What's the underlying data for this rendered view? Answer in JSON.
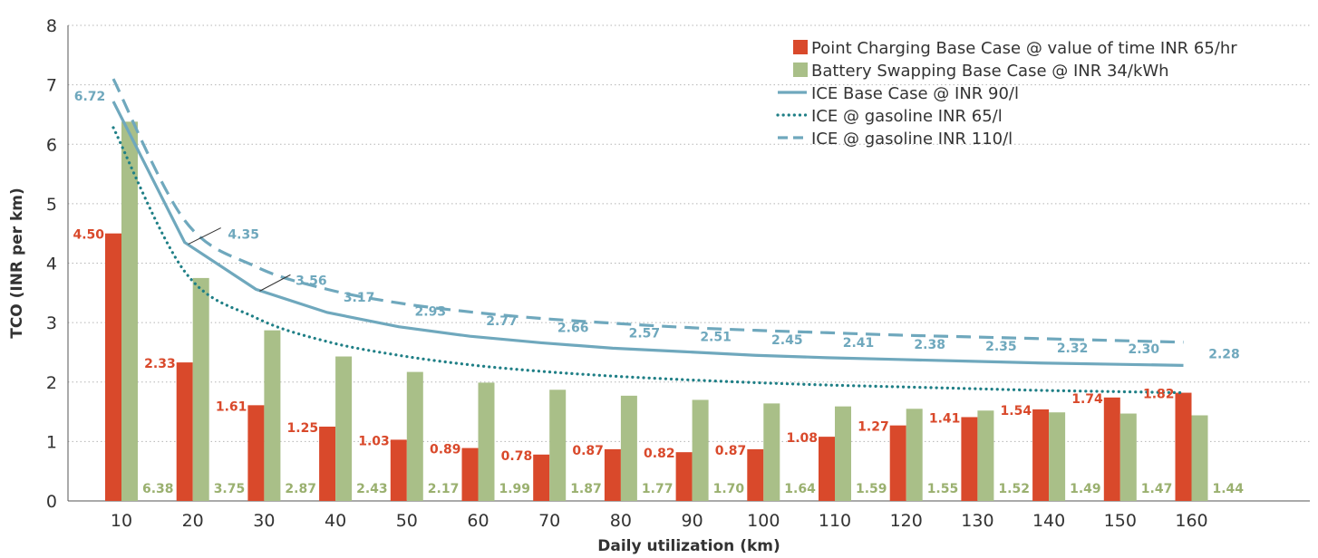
{
  "chart_data": {
    "type": "bar",
    "xlabel": "Daily utilization (km)",
    "ylabel": "TCO (INR per km)",
    "ylim": [
      0,
      8
    ],
    "yticks": [
      0,
      1,
      2,
      3,
      4,
      5,
      6,
      7,
      8
    ],
    "grid": "horizontal dotted",
    "legend_position": "top-right",
    "categories": [
      "10",
      "20",
      "30",
      "40",
      "50",
      "60",
      "70",
      "80",
      "90",
      "100",
      "110",
      "120",
      "130",
      "140",
      "150",
      "160"
    ],
    "series": [
      {
        "name": "Point Charging Base Case @ value of time INR 65/hr",
        "type": "bar",
        "color": "#d9492b",
        "values": [
          4.5,
          2.33,
          1.61,
          1.25,
          1.03,
          0.89,
          0.78,
          0.87,
          0.82,
          0.87,
          1.08,
          1.27,
          1.41,
          1.54,
          1.74,
          1.82
        ],
        "labels": [
          "4.50",
          "2.33",
          "1.61",
          "1.25",
          "1.03",
          "0.89",
          "0.78",
          "0.87",
          "0.82",
          "0.87",
          "1.08",
          "1.27",
          "1.41",
          "1.54",
          "1.74",
          "1.82"
        ]
      },
      {
        "name": "Battery Swapping Base Case @ INR 34/kWh",
        "type": "bar",
        "color": "#a9bf88",
        "values": [
          6.38,
          3.75,
          2.87,
          2.43,
          2.17,
          1.99,
          1.87,
          1.77,
          1.7,
          1.64,
          1.59,
          1.55,
          1.52,
          1.49,
          1.47,
          1.44
        ],
        "labels": [
          "6.38",
          "3.75",
          "2.87",
          "2.43",
          "2.17",
          "1.99",
          "1.87",
          "1.77",
          "1.70",
          "1.64",
          "1.59",
          "1.55",
          "1.52",
          "1.49",
          "1.47",
          "1.44"
        ]
      },
      {
        "name": "ICE Base Case @ INR 90/l",
        "type": "line",
        "style": "solid",
        "color": "#6fa8bd",
        "values": [
          6.72,
          4.35,
          3.56,
          3.17,
          2.93,
          2.77,
          2.66,
          2.57,
          2.51,
          2.45,
          2.41,
          2.38,
          2.35,
          2.32,
          2.3,
          2.28
        ],
        "labels": [
          "6.72",
          "4.35",
          "3.56",
          "3.17",
          "2.93",
          "2.77",
          "2.66",
          "2.57",
          "2.51",
          "2.45",
          "2.41",
          "2.38",
          "2.35",
          "2.32",
          "2.30",
          "2.28"
        ]
      },
      {
        "name": "ICE @ gasoline INR 65/l",
        "type": "line",
        "style": "dotted",
        "color": "#1f7f86",
        "values": [
          6.28,
          3.86,
          3.08,
          2.68,
          2.45,
          2.29,
          2.18,
          2.1,
          2.04,
          1.99,
          1.95,
          1.92,
          1.89,
          1.86,
          1.84,
          1.82
        ]
      },
      {
        "name": "ICE @ gasoline INR 110/l",
        "type": "line",
        "style": "dashed",
        "color": "#6fa8bd",
        "values": [
          7.1,
          4.72,
          3.94,
          3.56,
          3.33,
          3.18,
          3.07,
          2.99,
          2.92,
          2.87,
          2.83,
          2.79,
          2.76,
          2.73,
          2.7,
          2.67
        ]
      }
    ]
  }
}
